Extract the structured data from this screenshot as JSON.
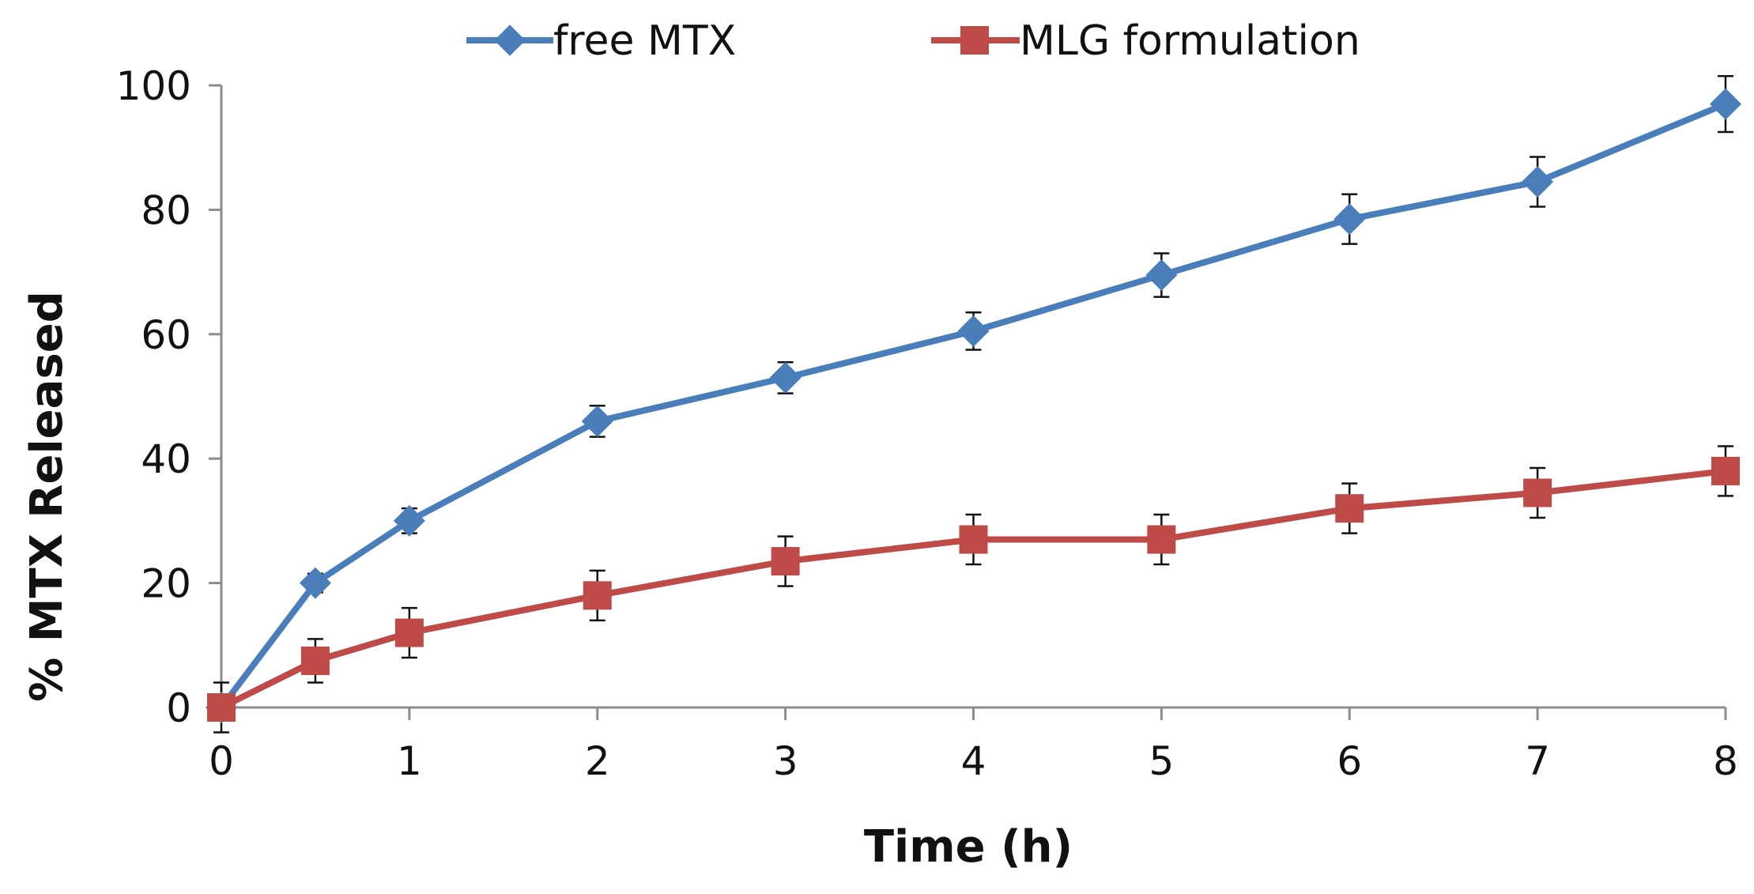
{
  "chart_data": {
    "type": "line",
    "title": "",
    "xlabel": "Time (h)",
    "ylabel": "% MTX Released",
    "xlim": [
      0,
      8
    ],
    "ylim": [
      0,
      100
    ],
    "x_ticks": [
      0,
      1,
      2,
      3,
      4,
      5,
      6,
      7,
      8
    ],
    "y_ticks": [
      0,
      20,
      40,
      60,
      80,
      100
    ],
    "grid": false,
    "legend_position": "top",
    "series": [
      {
        "name": "free MTX",
        "color": "#4a7ebb",
        "marker": "diamond",
        "x": [
          0,
          0.5,
          1,
          2,
          3,
          4,
          5,
          6,
          7,
          8
        ],
        "values": [
          0,
          20,
          30,
          46,
          53,
          60.5,
          69.5,
          78.5,
          84.5,
          97
        ],
        "errors": [
          4,
          1.5,
          2,
          2.5,
          2.5,
          3,
          3.5,
          4,
          4,
          4.5
        ]
      },
      {
        "name": "MLG formulation",
        "color": "#be4b48",
        "marker": "square",
        "x": [
          0,
          0.5,
          1,
          2,
          3,
          4,
          5,
          6,
          7,
          8
        ],
        "values": [
          0,
          7.5,
          12,
          18,
          23.5,
          27,
          27,
          32,
          34.5,
          38
        ],
        "errors": [
          0,
          3.5,
          4,
          4,
          4,
          4,
          4,
          4,
          4,
          4
        ]
      }
    ]
  }
}
